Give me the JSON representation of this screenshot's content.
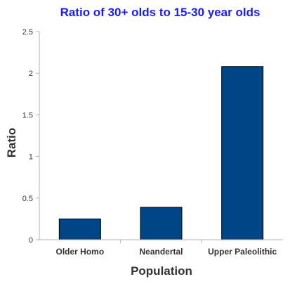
{
  "chart_data": {
    "type": "bar",
    "title": "Ratio of 30+ olds to 15-30 year olds",
    "xlabel": "Population",
    "ylabel": "Ratio",
    "categories": [
      "Older Homo",
      "Neandertal",
      "Upper Paleolithic"
    ],
    "values": [
      0.25,
      0.39,
      2.08
    ],
    "ylim": [
      0,
      2.5
    ],
    "yticks": [
      "0",
      "0.5",
      "1",
      "1.5",
      "2",
      "2.5"
    ],
    "grid": false,
    "legend": "none",
    "bar_color": "#004586"
  }
}
